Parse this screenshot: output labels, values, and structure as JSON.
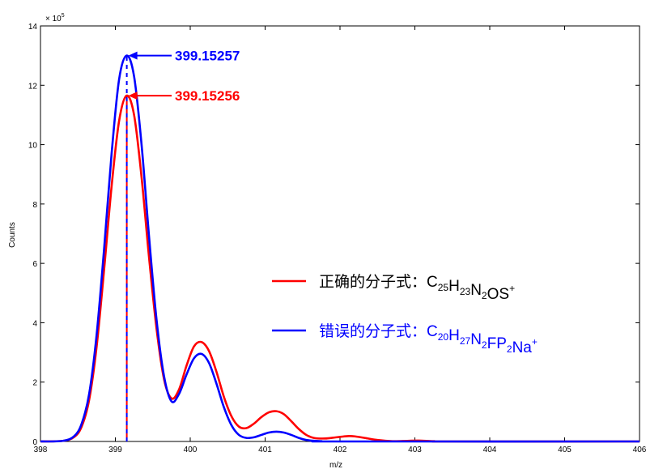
{
  "chart_data": {
    "type": "line",
    "title": "",
    "xlabel": "m/z",
    "ylabel": "Counts",
    "y_multiplier": "× 10",
    "y_multiplier_exp": "5",
    "xlim": [
      398,
      406
    ],
    "ylim": [
      0,
      14
    ],
    "x_ticks": [
      "398",
      "399",
      "400",
      "401",
      "402",
      "403",
      "404",
      "405",
      "406"
    ],
    "y_ticks": [
      "0",
      "2",
      "4",
      "6",
      "8",
      "10",
      "12",
      "14"
    ],
    "grid": false,
    "legend_position": "right",
    "series": [
      {
        "name_parts": [
          {
            "t": "正确的分子式：C"
          },
          {
            "t": "25",
            "sub": true
          },
          {
            "t": "H"
          },
          {
            "t": "23",
            "sub": true
          },
          {
            "t": "N"
          },
          {
            "t": "2",
            "sub": true
          },
          {
            "t": "OS"
          },
          {
            "t": "+",
            "sup": true
          }
        ],
        "color": "#ff0000",
        "points": [
          [
            398.0,
            0
          ],
          [
            398.3,
            0.02
          ],
          [
            398.45,
            0.15
          ],
          [
            398.55,
            0.5
          ],
          [
            398.65,
            1.4
          ],
          [
            398.75,
            3.2
          ],
          [
            398.85,
            5.8
          ],
          [
            398.95,
            8.6
          ],
          [
            399.05,
            10.8
          ],
          [
            399.15,
            11.65
          ],
          [
            399.25,
            11.0
          ],
          [
            399.35,
            8.9
          ],
          [
            399.45,
            6.2
          ],
          [
            399.55,
            3.8
          ],
          [
            399.65,
            2.1
          ],
          [
            399.75,
            1.45
          ],
          [
            399.85,
            1.75
          ],
          [
            399.95,
            2.55
          ],
          [
            400.05,
            3.2
          ],
          [
            400.15,
            3.35
          ],
          [
            400.25,
            3.05
          ],
          [
            400.35,
            2.35
          ],
          [
            400.45,
            1.5
          ],
          [
            400.55,
            0.85
          ],
          [
            400.65,
            0.5
          ],
          [
            400.75,
            0.45
          ],
          [
            400.85,
            0.6
          ],
          [
            400.95,
            0.82
          ],
          [
            401.05,
            0.98
          ],
          [
            401.15,
            1.02
          ],
          [
            401.25,
            0.92
          ],
          [
            401.35,
            0.68
          ],
          [
            401.45,
            0.42
          ],
          [
            401.55,
            0.22
          ],
          [
            401.65,
            0.12
          ],
          [
            401.8,
            0.1
          ],
          [
            401.95,
            0.14
          ],
          [
            402.1,
            0.18
          ],
          [
            402.2,
            0.17
          ],
          [
            402.35,
            0.11
          ],
          [
            402.5,
            0.05
          ],
          [
            402.7,
            0.01
          ],
          [
            402.9,
            0.02
          ],
          [
            403.05,
            0.03
          ],
          [
            403.25,
            0.01
          ],
          [
            403.5,
            0
          ],
          [
            406.0,
            0
          ]
        ]
      },
      {
        "name_parts": [
          {
            "t": "错误的分子式：C"
          },
          {
            "t": "20",
            "sub": true
          },
          {
            "t": "H"
          },
          {
            "t": "27",
            "sub": true
          },
          {
            "t": "N"
          },
          {
            "t": "2",
            "sub": true
          },
          {
            "t": "FP"
          },
          {
            "t": "2",
            "sub": true
          },
          {
            "t": "Na"
          },
          {
            "t": "+",
            "sup": true
          }
        ],
        "color": "#0000ff",
        "points": [
          [
            398.0,
            0
          ],
          [
            398.3,
            0.02
          ],
          [
            398.45,
            0.18
          ],
          [
            398.55,
            0.6
          ],
          [
            398.65,
            1.6
          ],
          [
            398.75,
            3.6
          ],
          [
            398.85,
            6.5
          ],
          [
            398.95,
            9.7
          ],
          [
            399.05,
            12.2
          ],
          [
            399.15,
            13.0
          ],
          [
            399.25,
            12.3
          ],
          [
            399.35,
            10.0
          ],
          [
            399.45,
            6.9
          ],
          [
            399.55,
            4.1
          ],
          [
            399.65,
            2.2
          ],
          [
            399.75,
            1.35
          ],
          [
            399.85,
            1.6
          ],
          [
            399.95,
            2.25
          ],
          [
            400.05,
            2.8
          ],
          [
            400.15,
            2.95
          ],
          [
            400.25,
            2.65
          ],
          [
            400.35,
            1.95
          ],
          [
            400.45,
            1.15
          ],
          [
            400.55,
            0.55
          ],
          [
            400.65,
            0.22
          ],
          [
            400.75,
            0.12
          ],
          [
            400.85,
            0.14
          ],
          [
            400.95,
            0.22
          ],
          [
            401.05,
            0.3
          ],
          [
            401.15,
            0.33
          ],
          [
            401.25,
            0.3
          ],
          [
            401.35,
            0.22
          ],
          [
            401.45,
            0.12
          ],
          [
            401.55,
            0.05
          ],
          [
            401.75,
            0.01
          ],
          [
            402.0,
            0
          ],
          [
            406.0,
            0
          ]
        ]
      }
    ],
    "annotations": [
      {
        "text": "399.15257",
        "color": "#0000ff",
        "x": 399.15257,
        "y": 13.0
      },
      {
        "text": "399.15256",
        "color": "#ff0000",
        "x": 399.15256,
        "y": 11.65
      }
    ],
    "peak_marker_x": 399.15256
  }
}
